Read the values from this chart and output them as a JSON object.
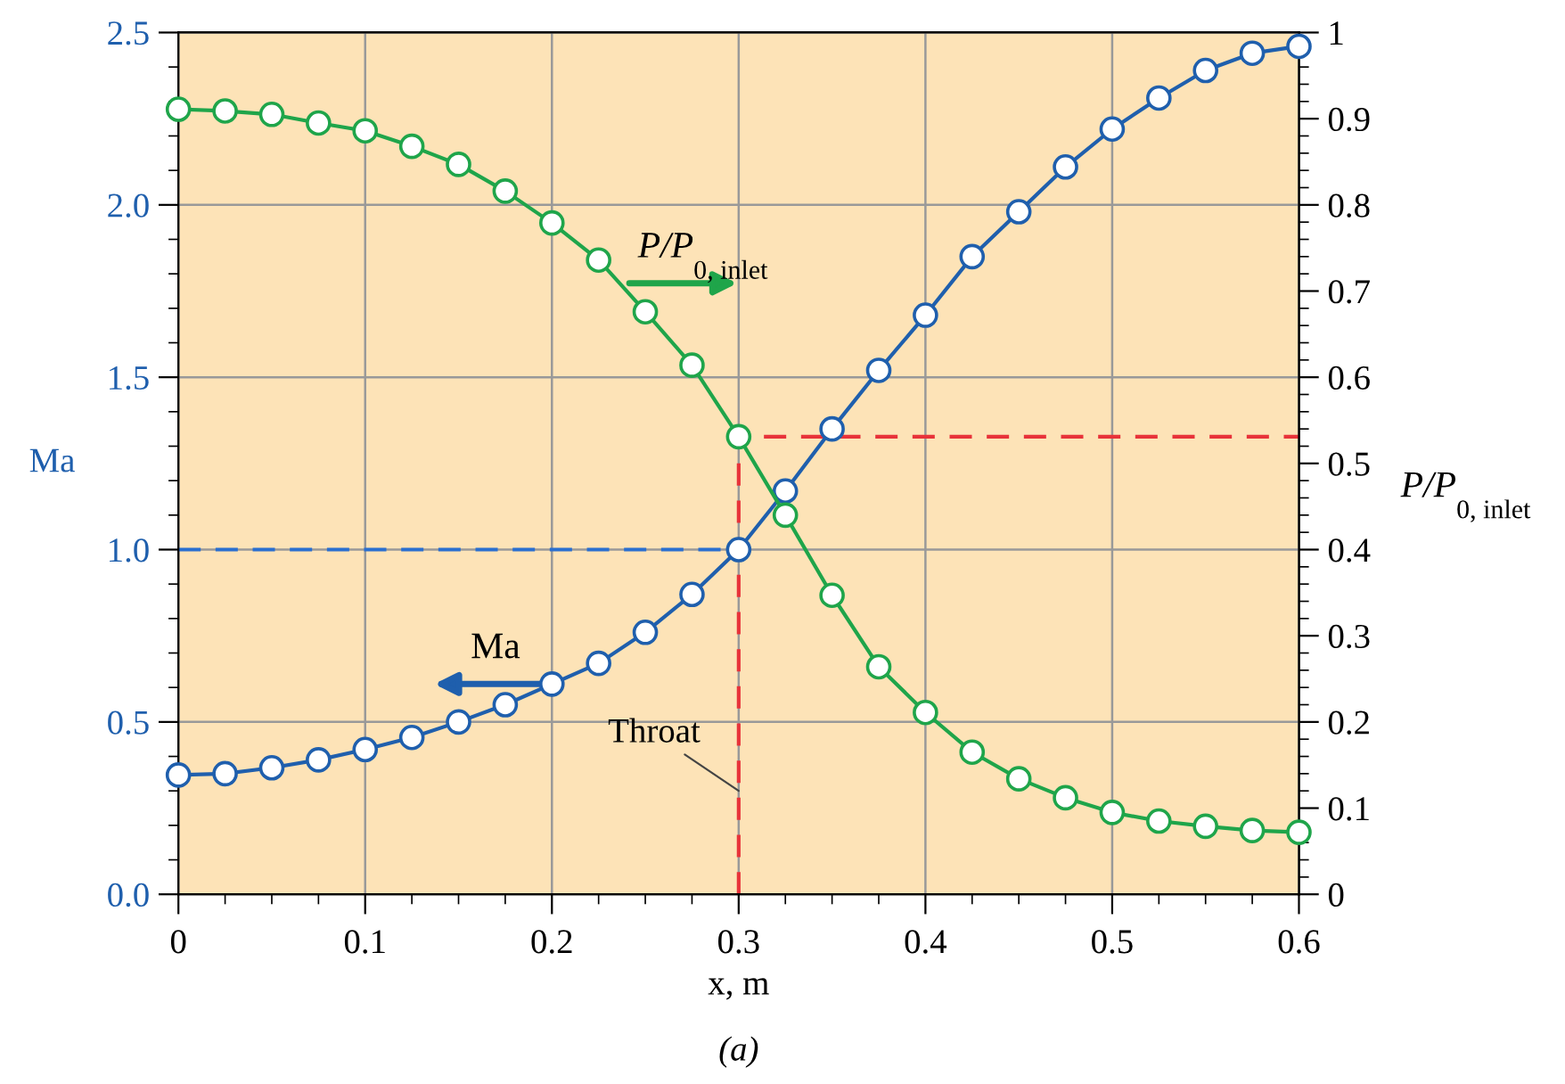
{
  "chart_data": {
    "type": "line",
    "xlabel": "x, m",
    "ylabel": "Ma",
    "y2label": "P/P$_{0, inlet}$",
    "x": [
      0,
      0.025,
      0.05,
      0.075,
      0.1,
      0.125,
      0.15,
      0.175,
      0.2,
      0.225,
      0.25,
      0.275,
      0.3,
      0.325,
      0.35,
      0.375,
      0.4,
      0.425,
      0.45,
      0.475,
      0.5,
      0.525,
      0.55,
      0.575,
      0.6
    ],
    "series": [
      {
        "color": "#1f5fad",
        "marker": "circle",
        "values": [
          0.346,
          0.35,
          0.367,
          0.39,
          0.42,
          0.455,
          0.5,
          0.55,
          0.61,
          0.67,
          0.76,
          0.87,
          1.0,
          1.17,
          1.35,
          1.52,
          1.68,
          1.85,
          1.98,
          2.11,
          2.22,
          2.31,
          2.39,
          2.44,
          2.46
        ]
      },
      {
        "color": "#1fa54a",
        "marker": "circle",
        "axis": "y2",
        "values": [
          0.911,
          0.909,
          0.905,
          0.895,
          0.886,
          0.868,
          0.847,
          0.816,
          0.779,
          0.736,
          0.676,
          0.614,
          0.531,
          0.44,
          0.347,
          0.264,
          0.211,
          0.165,
          0.134,
          0.112,
          0.095,
          0.085,
          0.079,
          0.074,
          0.072
        ]
      },
      {
        "color": "#2a6fd0",
        "marker": "none",
        "line_style": "dashed",
        "x": [
          0,
          0.3
        ],
        "values": [
          1,
          1
        ]
      },
      {
        "color": "#e8333a",
        "marker": "none",
        "line_style": "dashed",
        "axis": "y2",
        "x": [
          0.3,
          0.3,
          0.6
        ],
        "values": [
          0,
          0.531,
          0.531
        ]
      }
    ],
    "xlim": [
      0,
      0.6
    ],
    "xticks": [
      0,
      0.1,
      0.2,
      0.3,
      0.4,
      0.5,
      0.6
    ],
    "ylim": [
      0,
      2.5
    ],
    "yticks": [
      {
        "value": 0,
        "label": "0.0"
      },
      {
        "value": 0.5,
        "label": "0.5"
      },
      {
        "value": 1,
        "label": "1.0"
      },
      {
        "value": 1.5,
        "label": "1.5"
      },
      {
        "value": 2,
        "label": "2.0"
      },
      {
        "value": 2.5,
        "label": "2.5"
      }
    ],
    "y2lim": [
      0,
      1
    ],
    "y2ticks": [
      0,
      0.1,
      0.2,
      0.3,
      0.4,
      0.5,
      0.6,
      0.7,
      0.8,
      0.9,
      1
    ],
    "grid": true,
    "annotations": [
      "Ma",
      "P/P$_{0, inlet}$",
      {
        "text": "Throat",
        "x": 0.3,
        "y": 0.3
      },
      "(a)"
    ]
  }
}
